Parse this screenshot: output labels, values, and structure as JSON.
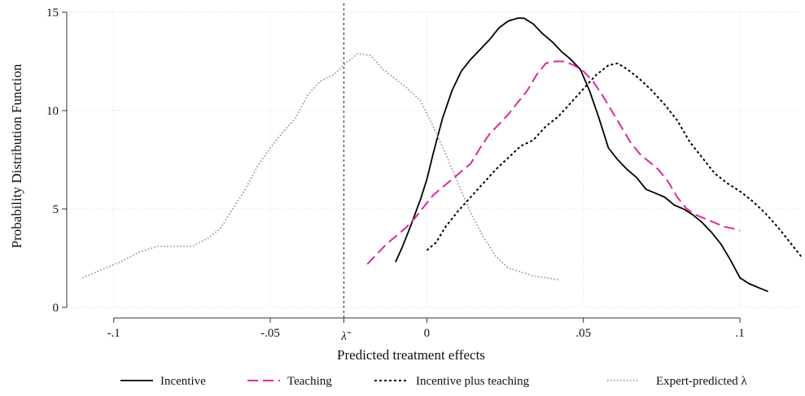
{
  "chart_data": {
    "type": "line",
    "title": "",
    "xlabel": "Predicted treatment effects",
    "ylabel": "Probability Distribution Function",
    "xlim": [
      -0.115,
      0.12
    ],
    "ylim": [
      0,
      15
    ],
    "grid": true,
    "legend_position": "bottom",
    "x_ticks": [
      {
        "value": -0.1,
        "label": "-.1"
      },
      {
        "value": -0.05,
        "label": "-.05"
      },
      {
        "value": 0,
        "label": "0"
      },
      {
        "value": 0.05,
        "label": ".05"
      },
      {
        "value": 0.1,
        "label": ".1"
      }
    ],
    "y_ticks": [
      {
        "value": 0,
        "label": "0"
      },
      {
        "value": 5,
        "label": "5"
      },
      {
        "value": 10,
        "label": "10"
      },
      {
        "value": 15,
        "label": "15"
      }
    ],
    "reference_line": {
      "x": -0.0265,
      "label": "λ̃"
    },
    "series": [
      {
        "name": "Incentive",
        "color": "#000000",
        "dash": "solid",
        "x": [
          -0.01,
          -0.008,
          -0.005,
          -0.002,
          0.0,
          0.002,
          0.005,
          0.008,
          0.011,
          0.014,
          0.017,
          0.02,
          0.023,
          0.026,
          0.029,
          0.031,
          0.034,
          0.037,
          0.04,
          0.043,
          0.046,
          0.049,
          0.052,
          0.055,
          0.058,
          0.061,
          0.064,
          0.067,
          0.07,
          0.073,
          0.076,
          0.079,
          0.082,
          0.085,
          0.088,
          0.091,
          0.094,
          0.097,
          0.1,
          0.103,
          0.106,
          0.109
        ],
        "y": [
          2.3,
          3.0,
          4.2,
          5.5,
          6.5,
          7.8,
          9.6,
          11.0,
          12.0,
          12.6,
          13.1,
          13.6,
          14.2,
          14.55,
          14.7,
          14.7,
          14.4,
          13.9,
          13.5,
          13.0,
          12.6,
          12.1,
          11.0,
          9.6,
          8.1,
          7.5,
          7.0,
          6.6,
          6.0,
          5.8,
          5.6,
          5.2,
          5.0,
          4.7,
          4.3,
          3.8,
          3.2,
          2.4,
          1.5,
          1.2,
          1.0,
          0.8
        ]
      },
      {
        "name": "Teaching",
        "color": "#e0289b",
        "dash": "dashed",
        "x": [
          -0.019,
          -0.016,
          -0.013,
          -0.01,
          -0.007,
          -0.004,
          -0.001,
          0.002,
          0.005,
          0.008,
          0.011,
          0.014,
          0.017,
          0.02,
          0.023,
          0.026,
          0.029,
          0.032,
          0.035,
          0.038,
          0.041,
          0.044,
          0.047,
          0.05,
          0.053,
          0.056,
          0.059,
          0.062,
          0.065,
          0.068,
          0.071,
          0.074,
          0.077,
          0.08,
          0.083,
          0.086,
          0.089,
          0.092,
          0.095,
          0.098,
          0.1
        ],
        "y": [
          2.2,
          2.7,
          3.2,
          3.6,
          4.0,
          4.5,
          5.1,
          5.7,
          6.1,
          6.5,
          6.9,
          7.3,
          8.1,
          8.8,
          9.3,
          9.8,
          10.4,
          11.0,
          11.8,
          12.4,
          12.5,
          12.5,
          12.3,
          12.0,
          11.5,
          10.8,
          10.0,
          9.2,
          8.4,
          7.8,
          7.4,
          7.0,
          6.4,
          5.6,
          5.0,
          4.7,
          4.5,
          4.3,
          4.1,
          4.0,
          3.9
        ]
      },
      {
        "name": "Incentive plus teaching",
        "color": "#000000",
        "dash": "dotted-dense",
        "x": [
          0.0,
          0.003,
          0.006,
          0.01,
          0.014,
          0.018,
          0.022,
          0.026,
          0.03,
          0.034,
          0.038,
          0.042,
          0.046,
          0.05,
          0.054,
          0.058,
          0.061,
          0.064,
          0.068,
          0.072,
          0.076,
          0.08,
          0.084,
          0.088,
          0.092,
          0.096,
          0.1,
          0.104,
          0.108,
          0.112,
          0.116,
          0.12
        ],
        "y": [
          2.9,
          3.3,
          4.1,
          4.9,
          5.6,
          6.3,
          7.0,
          7.6,
          8.2,
          8.5,
          9.2,
          9.7,
          10.4,
          11.1,
          11.8,
          12.3,
          12.4,
          12.1,
          11.6,
          11.0,
          10.3,
          9.5,
          8.4,
          7.6,
          6.8,
          6.3,
          5.9,
          5.4,
          4.8,
          4.1,
          3.3,
          2.5
        ]
      },
      {
        "name": "Expert-predicted λ",
        "color": "#8a8a8a",
        "dash": "dotted-sparse",
        "x": [
          -0.11,
          -0.104,
          -0.098,
          -0.092,
          -0.086,
          -0.08,
          -0.075,
          -0.07,
          -0.066,
          -0.062,
          -0.058,
          -0.054,
          -0.05,
          -0.046,
          -0.042,
          -0.038,
          -0.034,
          -0.03,
          -0.026,
          -0.022,
          -0.018,
          -0.014,
          -0.01,
          -0.006,
          -0.002,
          0.002,
          0.006,
          0.01,
          0.014,
          0.018,
          0.022,
          0.026,
          0.03,
          0.034,
          0.038,
          0.042
        ],
        "y": [
          1.5,
          1.9,
          2.3,
          2.8,
          3.1,
          3.1,
          3.1,
          3.5,
          4.0,
          5.0,
          6.0,
          7.2,
          8.1,
          8.9,
          9.6,
          10.8,
          11.5,
          11.8,
          12.4,
          12.9,
          12.8,
          12.1,
          11.6,
          11.1,
          10.5,
          9.2,
          7.8,
          6.3,
          4.8,
          3.6,
          2.6,
          2.0,
          1.8,
          1.6,
          1.5,
          1.4
        ]
      }
    ]
  }
}
